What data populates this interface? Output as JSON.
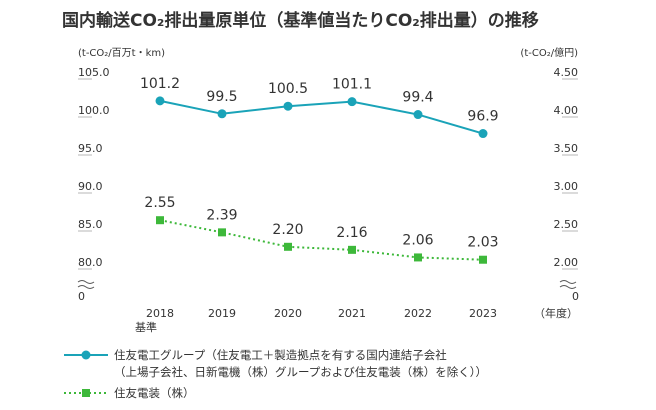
{
  "chart_data": {
    "type": "line",
    "title": "国内輸送CO₂排出量原単位（基準値当たりCO₂排出量）の推移",
    "categories": [
      "2018",
      "2019",
      "2020",
      "2021",
      "2022",
      "2023"
    ],
    "base_label": "基準",
    "xlabel": "（年度）",
    "left_axis": {
      "unit": "(t-CO₂/百万t・km)",
      "ticks": [
        "105.0",
        "100.0",
        "95.0",
        "90.0",
        "85.0",
        "80.0"
      ],
      "break_label": "0",
      "range": [
        80,
        105
      ]
    },
    "right_axis": {
      "unit": "(t-CO₂/億円)",
      "ticks": [
        "4.50",
        "4.00",
        "3.50",
        "3.00",
        "2.50",
        "2.00"
      ],
      "break_label": "0",
      "range": [
        2.0,
        4.5
      ]
    },
    "series": [
      {
        "name": "住友電工グループ（住友電工＋製造拠点を有する国内連結子会社",
        "name_line2": "（上場子会社、日新電機（株）グループおよび住友電装（株）を除く））",
        "axis": "left",
        "color": "#1aa3b8",
        "values": [
          101.2,
          99.5,
          100.5,
          101.1,
          99.4,
          96.9
        ],
        "labels": [
          "101.2",
          "99.5",
          "100.5",
          "101.1",
          "99.4",
          "96.9"
        ]
      },
      {
        "name": "住友電装（株）",
        "axis": "right",
        "color": "#3db83a",
        "values": [
          2.55,
          2.39,
          2.2,
          2.16,
          2.06,
          2.03
        ],
        "labels": [
          "2.55",
          "2.39",
          "2.20",
          "2.16",
          "2.06",
          "2.03"
        ]
      }
    ]
  }
}
